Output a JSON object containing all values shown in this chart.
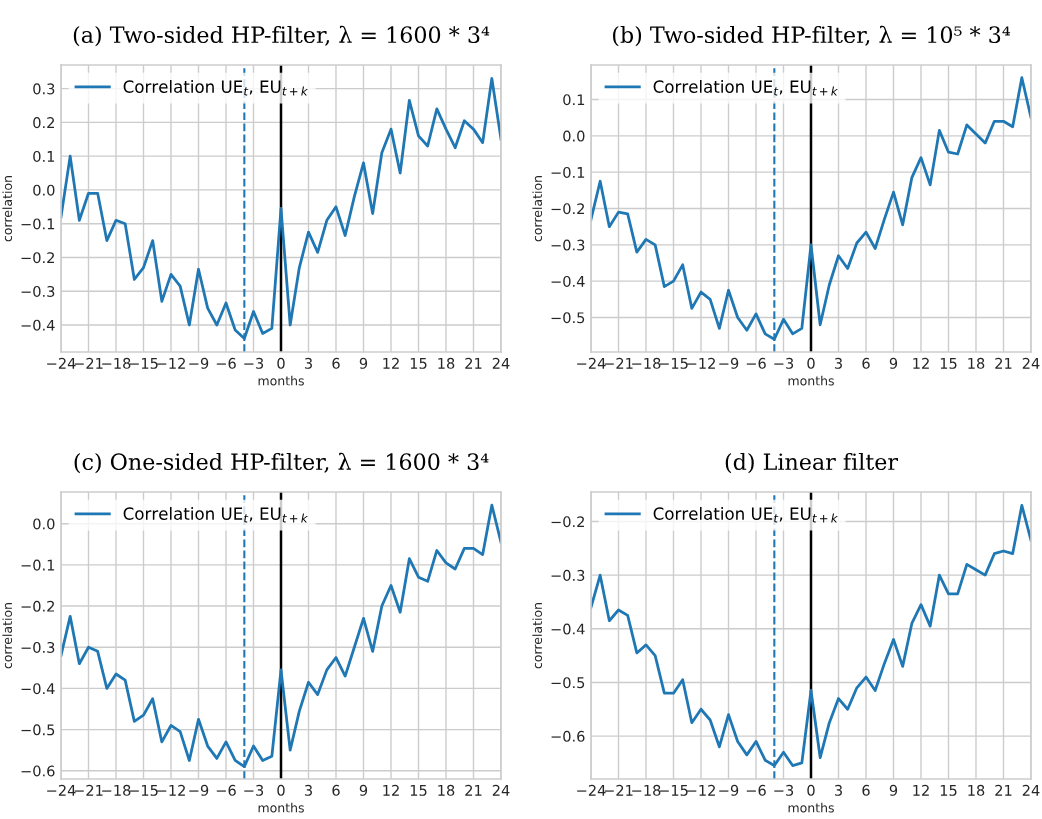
{
  "chart_data": [
    {
      "type": "line",
      "title": "(a) Two-sided HP-filter, λ = 1600 * 3⁴",
      "xlabel": "months",
      "ylabel": "correlation",
      "x": [
        -24,
        -23,
        -22,
        -21,
        -20,
        -19,
        -18,
        -17,
        -16,
        -15,
        -14,
        -13,
        -12,
        -11,
        -10,
        -9,
        -8,
        -7,
        -6,
        -5,
        -4,
        -3,
        -2,
        -1,
        0,
        1,
        2,
        3,
        4,
        5,
        6,
        7,
        8,
        9,
        10,
        11,
        12,
        13,
        14,
        15,
        16,
        17,
        18,
        19,
        20,
        21,
        22,
        23,
        24
      ],
      "series": [
        {
          "name": "Correlation UE$_{t}$, EU$_{t+k}$",
          "color": "#1f77b4",
          "values": [
            -0.08,
            0.1,
            -0.09,
            -0.01,
            -0.01,
            -0.15,
            -0.09,
            -0.1,
            -0.265,
            -0.23,
            -0.15,
            -0.33,
            -0.25,
            -0.285,
            -0.4,
            -0.235,
            -0.35,
            -0.4,
            -0.335,
            -0.415,
            -0.44,
            -0.36,
            -0.425,
            -0.41,
            -0.055,
            -0.4,
            -0.23,
            -0.125,
            -0.185,
            -0.09,
            -0.05,
            -0.135,
            -0.02,
            0.08,
            -0.07,
            0.11,
            0.18,
            0.05,
            0.265,
            0.16,
            0.13,
            0.24,
            0.18,
            0.125,
            0.205,
            0.18,
            0.14,
            0.33,
            0.15
          ]
        }
      ],
      "xlim": [
        -24,
        24
      ],
      "xticks": [
        {
          "value": -24,
          "label": "−24"
        },
        {
          "value": -21,
          "label": "−21"
        },
        {
          "value": -18,
          "label": "−18"
        },
        {
          "value": -15,
          "label": "−15"
        },
        {
          "value": -12,
          "label": "−12"
        },
        {
          "value": -9,
          "label": "−9"
        },
        {
          "value": -6,
          "label": "−6"
        },
        {
          "value": -3,
          "label": "−3"
        },
        0,
        3,
        6,
        9,
        12,
        15,
        18,
        21,
        24
      ],
      "ylim": [
        -0.48,
        0.37
      ],
      "yticks": [
        {
          "value": -0.4,
          "label": "−0.4"
        },
        {
          "value": -0.3,
          "label": "−0.3"
        },
        {
          "value": -0.2,
          "label": "−0.2"
        },
        {
          "value": -0.1,
          "label": "−0.1"
        },
        {
          "value": 0,
          "label": "0.0"
        },
        0.1,
        0.2,
        0.3
      ],
      "ref_lines": [
        {
          "axis": "x",
          "value": -4,
          "color": "#1f77b4",
          "line_style": "dashed"
        },
        {
          "axis": "x",
          "value": 0,
          "color": "#000000",
          "line_style": "solid"
        }
      ],
      "grid": true,
      "legend": "top left",
      "line_style": "solid"
    },
    {
      "type": "line",
      "title": "(b) Two-sided HP-filter, λ = 10⁵ * 3⁴",
      "xlabel": "months",
      "ylabel": "correlation",
      "x": [
        -24,
        -23,
        -22,
        -21,
        -20,
        -19,
        -18,
        -17,
        -16,
        -15,
        -14,
        -13,
        -12,
        -11,
        -10,
        -9,
        -8,
        -7,
        -6,
        -5,
        -4,
        -3,
        -2,
        -1,
        0,
        1,
        2,
        3,
        4,
        5,
        6,
        7,
        8,
        9,
        10,
        11,
        12,
        13,
        14,
        15,
        16,
        17,
        18,
        19,
        20,
        21,
        22,
        23,
        24
      ],
      "series": [
        {
          "name": "Correlation UE$_{t}$, EU$_{t+k}$",
          "color": "#1f77b4",
          "values": [
            -0.23,
            -0.125,
            -0.25,
            -0.21,
            -0.215,
            -0.32,
            -0.285,
            -0.3,
            -0.415,
            -0.4,
            -0.355,
            -0.475,
            -0.43,
            -0.45,
            -0.53,
            -0.425,
            -0.5,
            -0.535,
            -0.49,
            -0.545,
            -0.56,
            -0.505,
            -0.545,
            -0.53,
            -0.3,
            -0.52,
            -0.41,
            -0.33,
            -0.365,
            -0.295,
            -0.265,
            -0.31,
            -0.23,
            -0.155,
            -0.245,
            -0.115,
            -0.06,
            -0.135,
            0.015,
            -0.045,
            -0.05,
            0.03,
            0.005,
            -0.02,
            0.04,
            0.04,
            0.025,
            0.16,
            0.05
          ]
        }
      ],
      "xlim": [
        -24,
        24
      ],
      "xticks": [
        {
          "value": -24,
          "label": "−24"
        },
        {
          "value": -21,
          "label": "−21"
        },
        {
          "value": -18,
          "label": "−18"
        },
        {
          "value": -15,
          "label": "−15"
        },
        {
          "value": -12,
          "label": "−12"
        },
        {
          "value": -9,
          "label": "−9"
        },
        {
          "value": -6,
          "label": "−6"
        },
        {
          "value": -3,
          "label": "−3"
        },
        0,
        3,
        6,
        9,
        12,
        15,
        18,
        21,
        24
      ],
      "ylim": [
        -0.595,
        0.195
      ],
      "yticks": [
        {
          "value": -0.5,
          "label": "−0.5"
        },
        {
          "value": -0.4,
          "label": "−0.4"
        },
        {
          "value": -0.3,
          "label": "−0.3"
        },
        {
          "value": -0.2,
          "label": "−0.2"
        },
        {
          "value": -0.1,
          "label": "−0.1"
        },
        {
          "value": 0,
          "label": "0.0"
        },
        0.1
      ],
      "ref_lines": [
        {
          "axis": "x",
          "value": -4,
          "color": "#1f77b4",
          "line_style": "dashed"
        },
        {
          "axis": "x",
          "value": 0,
          "color": "#000000",
          "line_style": "solid"
        }
      ],
      "grid": true,
      "legend": "top left",
      "line_style": "solid"
    },
    {
      "type": "line",
      "title": "(c) One-sided HP-filter, λ = 1600 * 3⁴",
      "xlabel": "months",
      "ylabel": "correlation",
      "x": [
        -24,
        -23,
        -22,
        -21,
        -20,
        -19,
        -18,
        -17,
        -16,
        -15,
        -14,
        -13,
        -12,
        -11,
        -10,
        -9,
        -8,
        -7,
        -6,
        -5,
        -4,
        -3,
        -2,
        -1,
        0,
        1,
        2,
        3,
        4,
        5,
        6,
        7,
        8,
        9,
        10,
        11,
        12,
        13,
        14,
        15,
        16,
        17,
        18,
        19,
        20,
        21,
        22,
        23,
        24
      ],
      "series": [
        {
          "name": "Correlation UE$_{t}$, EU$_{t+k}$",
          "color": "#1f77b4",
          "values": [
            -0.32,
            -0.225,
            -0.34,
            -0.3,
            -0.31,
            -0.4,
            -0.365,
            -0.38,
            -0.48,
            -0.465,
            -0.425,
            -0.53,
            -0.49,
            -0.505,
            -0.575,
            -0.475,
            -0.54,
            -0.57,
            -0.53,
            -0.575,
            -0.59,
            -0.54,
            -0.575,
            -0.565,
            -0.355,
            -0.55,
            -0.455,
            -0.385,
            -0.415,
            -0.355,
            -0.325,
            -0.37,
            -0.3,
            -0.23,
            -0.31,
            -0.2,
            -0.15,
            -0.215,
            -0.085,
            -0.13,
            -0.14,
            -0.065,
            -0.095,
            -0.11,
            -0.06,
            -0.06,
            -0.075,
            0.045,
            -0.045
          ]
        }
      ],
      "xlim": [
        -24,
        24
      ],
      "xticks": [
        {
          "value": -24,
          "label": "−24"
        },
        {
          "value": -21,
          "label": "−21"
        },
        {
          "value": -18,
          "label": "−18"
        },
        {
          "value": -15,
          "label": "−15"
        },
        {
          "value": -12,
          "label": "−12"
        },
        {
          "value": -9,
          "label": "−9"
        },
        {
          "value": -6,
          "label": "−6"
        },
        {
          "value": -3,
          "label": "−3"
        },
        0,
        3,
        6,
        9,
        12,
        15,
        18,
        21,
        24
      ],
      "ylim": [
        -0.62,
        0.077
      ],
      "yticks": [
        {
          "value": -0.6,
          "label": "−0.6"
        },
        {
          "value": -0.5,
          "label": "−0.5"
        },
        {
          "value": -0.4,
          "label": "−0.4"
        },
        {
          "value": -0.3,
          "label": "−0.3"
        },
        {
          "value": -0.2,
          "label": "−0.2"
        },
        {
          "value": -0.1,
          "label": "−0.1"
        },
        {
          "value": 0,
          "label": "0.0"
        }
      ],
      "ref_lines": [
        {
          "axis": "x",
          "value": -4,
          "color": "#1f77b4",
          "line_style": "dashed"
        },
        {
          "axis": "x",
          "value": 0,
          "color": "#000000",
          "line_style": "solid"
        }
      ],
      "grid": true,
      "legend": "top left",
      "line_style": "solid"
    },
    {
      "type": "line",
      "title": "(d) Linear filter",
      "xlabel": "months",
      "ylabel": "correlation",
      "x": [
        -24,
        -23,
        -22,
        -21,
        -20,
        -19,
        -18,
        -17,
        -16,
        -15,
        -14,
        -13,
        -12,
        -11,
        -10,
        -9,
        -8,
        -7,
        -6,
        -5,
        -4,
        -3,
        -2,
        -1,
        0,
        1,
        2,
        3,
        4,
        5,
        6,
        7,
        8,
        9,
        10,
        11,
        12,
        13,
        14,
        15,
        16,
        17,
        18,
        19,
        20,
        21,
        22,
        23,
        24
      ],
      "series": [
        {
          "name": "Correlation UE$_{t}$, EU$_{t+k}$",
          "color": "#1f77b4",
          "values": [
            -0.36,
            -0.3,
            -0.385,
            -0.365,
            -0.375,
            -0.445,
            -0.43,
            -0.45,
            -0.52,
            -0.52,
            -0.495,
            -0.575,
            -0.55,
            -0.57,
            -0.62,
            -0.56,
            -0.61,
            -0.635,
            -0.61,
            -0.645,
            -0.655,
            -0.63,
            -0.655,
            -0.65,
            -0.515,
            -0.64,
            -0.575,
            -0.53,
            -0.55,
            -0.51,
            -0.49,
            -0.515,
            -0.465,
            -0.42,
            -0.47,
            -0.39,
            -0.355,
            -0.395,
            -0.3,
            -0.335,
            -0.335,
            -0.28,
            -0.29,
            -0.3,
            -0.26,
            -0.255,
            -0.26,
            -0.17,
            -0.235
          ]
        }
      ],
      "xlim": [
        -24,
        24
      ],
      "xticks": [
        {
          "value": -24,
          "label": "−24"
        },
        {
          "value": -21,
          "label": "−21"
        },
        {
          "value": -18,
          "label": "−18"
        },
        {
          "value": -15,
          "label": "−15"
        },
        {
          "value": -12,
          "label": "−12"
        },
        {
          "value": -9,
          "label": "−9"
        },
        {
          "value": -6,
          "label": "−6"
        },
        {
          "value": -3,
          "label": "−3"
        },
        0,
        3,
        6,
        9,
        12,
        15,
        18,
        21,
        24
      ],
      "ylim": [
        -0.68,
        -0.145
      ],
      "yticks": [
        {
          "value": -0.6,
          "label": "−0.6"
        },
        {
          "value": -0.5,
          "label": "−0.5"
        },
        {
          "value": -0.4,
          "label": "−0.4"
        },
        {
          "value": -0.3,
          "label": "−0.3"
        },
        {
          "value": -0.2,
          "label": "−0.2"
        }
      ],
      "ref_lines": [
        {
          "axis": "x",
          "value": -4,
          "color": "#1f77b4",
          "line_style": "dashed"
        },
        {
          "axis": "x",
          "value": 0,
          "color": "#000000",
          "line_style": "solid"
        }
      ],
      "grid": true,
      "legend": "top left",
      "line_style": "solid"
    }
  ]
}
